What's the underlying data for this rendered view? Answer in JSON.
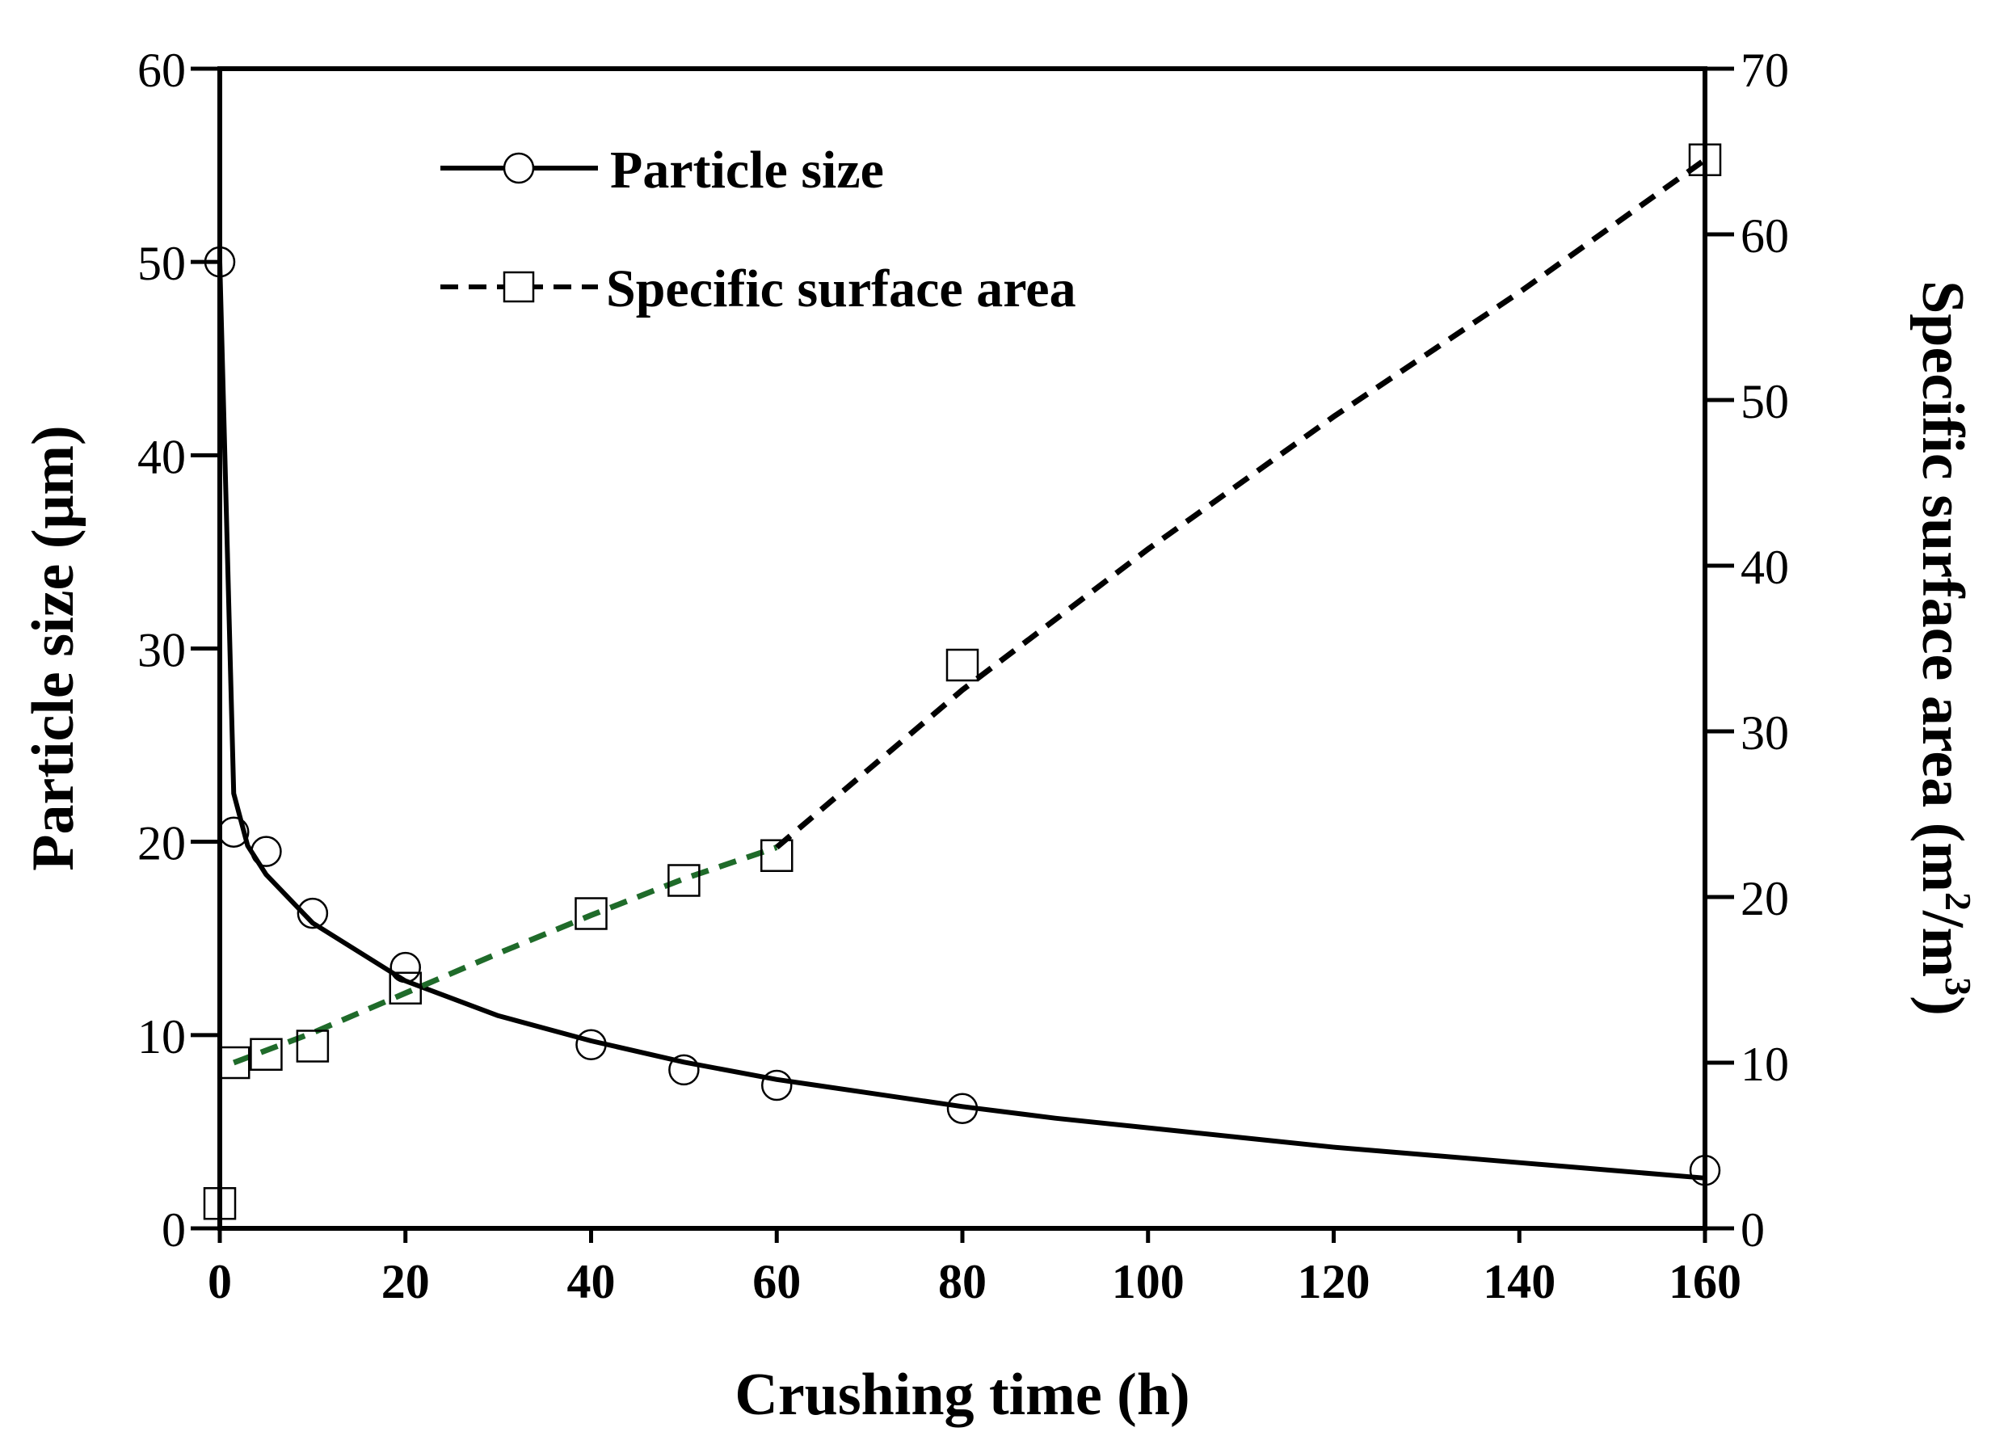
{
  "chart_data": {
    "type": "line",
    "xlabel": "Crushing time (h)",
    "ylabel_left": "Particle size (μm)",
    "ylabel_right": "Specific surface area (m²/m³)",
    "ylabel_right_parts": {
      "main": "Specific surface area (m",
      "sup1": "2",
      "mid": "/m",
      "sup2": "3",
      "end": ")"
    },
    "xlim": [
      0,
      160
    ],
    "ylim_left": [
      0,
      60
    ],
    "ylim_right": [
      0,
      70
    ],
    "x_ticks": [
      "0",
      "20",
      "40",
      "60",
      "80",
      "100",
      "120",
      "140",
      "160"
    ],
    "y_left_ticks": [
      "0",
      "10",
      "20",
      "30",
      "40",
      "50",
      "60"
    ],
    "y_right_ticks": [
      "0",
      "10",
      "20",
      "30",
      "40",
      "50",
      "60",
      "70"
    ],
    "legend": [
      {
        "label": "Particle size",
        "line": "solid",
        "marker": "circle"
      },
      {
        "label": "Specific surface area",
        "line": "dashed",
        "marker": "square"
      }
    ],
    "series": [
      {
        "name": "Particle size",
        "axis": "left",
        "marker": "circle",
        "points": {
          "x": [
            0,
            1.5,
            5,
            10,
            20,
            40,
            50,
            60,
            80,
            160
          ],
          "y": [
            50,
            20.5,
            19.5,
            16.3,
            13.5,
            9.5,
            8.2,
            7.4,
            6.2,
            3.0
          ]
        },
        "fit": {
          "x": [
            0,
            1.5,
            3,
            5,
            10,
            20,
            30,
            40,
            50,
            60,
            70,
            80,
            90,
            100,
            110,
            120,
            130,
            140,
            150,
            160
          ],
          "y": [
            50,
            22.5,
            19.8,
            18.3,
            15.8,
            12.8,
            11.0,
            9.7,
            8.6,
            7.7,
            7.0,
            6.3,
            5.7,
            5.2,
            4.7,
            4.2,
            3.8,
            3.4,
            3.0,
            2.6
          ],
          "line": "solid",
          "color": "#000000"
        }
      },
      {
        "name": "Specific surface area",
        "axis": "right",
        "marker": "square",
        "points": {
          "x": [
            0,
            1.5,
            5,
            10,
            20,
            40,
            50,
            60,
            80,
            160
          ],
          "y": [
            1.5,
            10,
            10.5,
            11,
            14.5,
            19,
            21,
            22.5,
            34,
            64.5
          ]
        },
        "fit_segments": [
          {
            "x": [
              1.5,
              10,
              20,
              30,
              40,
              50,
              60
            ],
            "y": [
              10,
              11.8,
              14.2,
              16.6,
              18.9,
              21.1,
              23
            ],
            "line": "dashed",
            "color": "#1f6b2a"
          },
          {
            "x": [
              60,
              80,
              100,
              120,
              140,
              160
            ],
            "y": [
              23,
              32.5,
              41,
              49,
              56.5,
              64.5
            ],
            "line": "dashed",
            "color": "#000000"
          }
        ]
      }
    ]
  }
}
